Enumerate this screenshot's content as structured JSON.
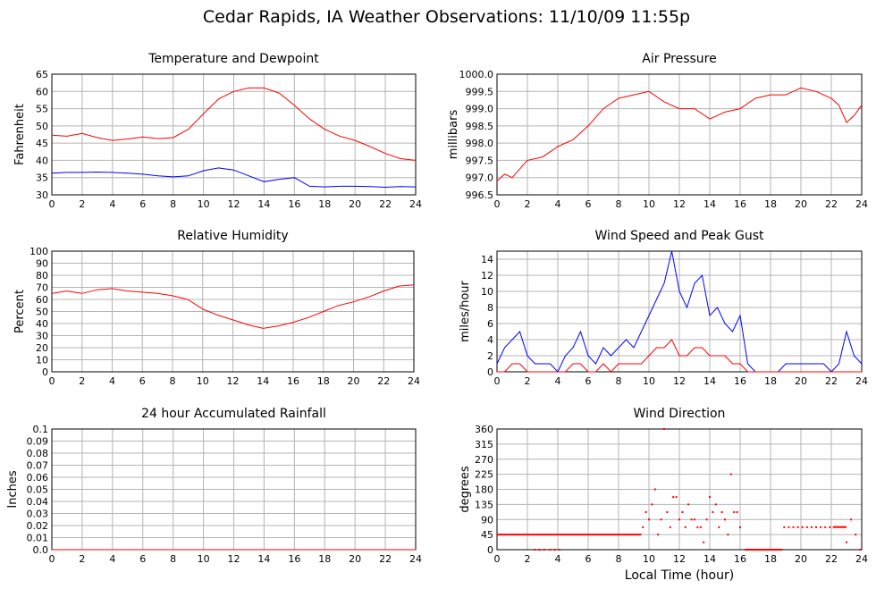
{
  "page": {
    "title": "Cedar Rapids, IA Weather Observations: 11/10/09 11:55p",
    "x_axis_label": "Local Time (hour)"
  },
  "colors": {
    "red": "#ff0000",
    "blue": "#0000ff",
    "grid": "#b4b4b4"
  },
  "chart_data": [
    {
      "id": "temp",
      "type": "line",
      "title": "Temperature and Dewpoint",
      "ylabel": "Fahrenheit",
      "xlim": [
        0,
        24
      ],
      "ylim": [
        30,
        65
      ],
      "xticks": [
        0,
        2,
        4,
        6,
        8,
        10,
        12,
        14,
        16,
        18,
        20,
        22,
        24
      ],
      "yticks": [
        30,
        35,
        40,
        45,
        50,
        55,
        60,
        65
      ],
      "ytick_labels": [
        "30",
        "35",
        "40",
        "45",
        "50",
        "55",
        "60",
        "65"
      ],
      "grid": true,
      "series": [
        {
          "key": "temperature",
          "color": "#ff0000",
          "x": [
            0,
            1,
            2,
            3,
            4,
            5,
            6,
            7,
            8,
            9,
            10,
            11,
            12,
            13,
            14,
            15,
            16,
            17,
            18,
            19,
            20,
            21,
            22,
            23,
            24
          ],
          "values": [
            47.3,
            47.0,
            47.8,
            46.6,
            45.8,
            46.2,
            46.8,
            46.3,
            46.6,
            49.0,
            53.5,
            57.8,
            60.0,
            61.0,
            61.0,
            59.5,
            56.0,
            52.0,
            49.0,
            47.0,
            45.8,
            44.0,
            42.0,
            40.5,
            40.0
          ]
        },
        {
          "key": "dewpoint",
          "color": "#0000ff",
          "x": [
            0,
            1,
            2,
            3,
            4,
            5,
            6,
            7,
            8,
            9,
            10,
            11,
            12,
            13,
            14,
            15,
            16,
            17,
            18,
            19,
            20,
            21,
            22,
            23,
            24
          ],
          "values": [
            36.3,
            36.5,
            36.5,
            36.6,
            36.5,
            36.3,
            36.0,
            35.5,
            35.2,
            35.5,
            37.0,
            37.8,
            37.2,
            35.5,
            33.8,
            34.5,
            35.0,
            32.5,
            32.3,
            32.5,
            32.5,
            32.4,
            32.2,
            32.4,
            32.3
          ]
        }
      ]
    },
    {
      "id": "pressure",
      "type": "line",
      "title": "Air Pressure",
      "ylabel": "millibars",
      "xlim": [
        0,
        24
      ],
      "ylim": [
        996.5,
        1000.0
      ],
      "xticks": [
        0,
        2,
        4,
        6,
        8,
        10,
        12,
        14,
        16,
        18,
        20,
        22,
        24
      ],
      "yticks": [
        996.5,
        997.0,
        997.5,
        998.0,
        998.5,
        999.0,
        999.5,
        1000.0
      ],
      "ytick_labels": [
        "996.5",
        "997.0",
        "997.5",
        "998.0",
        "998.5",
        "999.0",
        "999.5",
        "1000.0"
      ],
      "grid": true,
      "series": [
        {
          "key": "pressure",
          "color": "#ff0000",
          "x": [
            0,
            0.5,
            1,
            2,
            3,
            4,
            5,
            6,
            7,
            8,
            9,
            10,
            11,
            12,
            13,
            14,
            15,
            16,
            17,
            18,
            19,
            20,
            21,
            22,
            22.5,
            23,
            23.5,
            24
          ],
          "values": [
            996.9,
            997.1,
            997.0,
            997.5,
            997.6,
            997.9,
            998.1,
            998.5,
            999.0,
            999.3,
            999.4,
            999.5,
            999.2,
            999.0,
            999.0,
            998.7,
            998.9,
            999.0,
            999.3,
            999.4,
            999.4,
            999.6,
            999.5,
            999.3,
            999.1,
            998.6,
            998.8,
            999.1
          ]
        }
      ]
    },
    {
      "id": "humidity",
      "type": "line",
      "title": "Relative Humidity",
      "ylabel": "Percent",
      "xlim": [
        0,
        24
      ],
      "ylim": [
        0,
        100
      ],
      "xticks": [
        0,
        2,
        4,
        6,
        8,
        10,
        12,
        14,
        16,
        18,
        20,
        22,
        24
      ],
      "yticks": [
        0,
        10,
        20,
        30,
        40,
        50,
        60,
        70,
        80,
        90,
        100
      ],
      "ytick_labels": [
        "0",
        "10",
        "20",
        "30",
        "40",
        "50",
        "60",
        "70",
        "80",
        "90",
        "100"
      ],
      "grid": true,
      "series": [
        {
          "key": "rh",
          "color": "#ff0000",
          "x": [
            0,
            1,
            2,
            3,
            4,
            5,
            6,
            7,
            8,
            9,
            10,
            11,
            12,
            13,
            14,
            15,
            16,
            17,
            18,
            19,
            20,
            21,
            22,
            23,
            24
          ],
          "values": [
            65,
            67,
            65,
            68,
            69,
            67,
            66,
            65,
            63,
            60,
            52,
            47,
            43,
            39,
            36,
            38,
            41,
            45,
            50,
            55,
            58,
            62,
            67,
            71,
            72
          ]
        }
      ]
    },
    {
      "id": "wind",
      "type": "line",
      "title": "Wind Speed and Peak Gust",
      "ylabel": "miles/hour",
      "xlim": [
        0,
        24
      ],
      "ylim": [
        0,
        15
      ],
      "xticks": [
        0,
        2,
        4,
        6,
        8,
        10,
        12,
        14,
        16,
        18,
        20,
        22,
        24
      ],
      "yticks": [
        0,
        2,
        4,
        6,
        8,
        10,
        12,
        14
      ],
      "ytick_labels": [
        "0",
        "2",
        "4",
        "6",
        "8",
        "10",
        "12",
        "14"
      ],
      "grid": true,
      "series": [
        {
          "key": "gust",
          "color": "#0000ff",
          "x": [
            0,
            0.5,
            1,
            1.5,
            2,
            2.5,
            3,
            3.5,
            4,
            4.5,
            5,
            5.5,
            6,
            6.5,
            7,
            7.5,
            8,
            8.5,
            9,
            9.5,
            10,
            10.5,
            11,
            11.5,
            12,
            12.5,
            13,
            13.5,
            14,
            14.5,
            15,
            15.5,
            16,
            16.5,
            17,
            17.5,
            18,
            18.5,
            19,
            19.5,
            20,
            20.5,
            21,
            21.5,
            22,
            22.5,
            23,
            23.5,
            24
          ],
          "values": [
            1,
            3,
            4,
            5,
            2,
            1,
            1,
            1,
            0,
            2,
            3,
            5,
            2,
            1,
            3,
            2,
            3,
            4,
            3,
            5,
            7,
            9,
            11,
            15,
            10,
            8,
            11,
            12,
            7,
            8,
            6,
            5,
            7,
            1,
            0,
            0,
            0,
            0,
            1,
            1,
            1,
            1,
            1,
            1,
            0,
            1,
            5,
            2,
            1
          ]
        },
        {
          "key": "speed",
          "color": "#ff0000",
          "x": [
            0,
            0.5,
            1,
            1.5,
            2,
            2.5,
            3,
            3.5,
            4,
            4.5,
            5,
            5.5,
            6,
            6.5,
            7,
            7.5,
            8,
            8.5,
            9,
            9.5,
            10,
            10.5,
            11,
            11.5,
            12,
            12.5,
            13,
            13.5,
            14,
            14.5,
            15,
            15.5,
            16,
            16.5,
            17,
            17.5,
            18,
            18.5,
            19,
            19.5,
            20,
            20.5,
            21,
            21.5,
            22,
            22.5,
            23,
            23.5,
            24
          ],
          "values": [
            0,
            0,
            1,
            1,
            0,
            0,
            0,
            0,
            0,
            0,
            1,
            1,
            0,
            0,
            1,
            0,
            1,
            1,
            1,
            1,
            2,
            3,
            3,
            4,
            2,
            2,
            3,
            3,
            2,
            2,
            2,
            1,
            1,
            0,
            0,
            0,
            0,
            0,
            0,
            0,
            0,
            0,
            0,
            0,
            0,
            0,
            0,
            0,
            0
          ]
        }
      ]
    },
    {
      "id": "rain",
      "type": "line",
      "title": "24 hour Accumulated Rainfall",
      "ylabel": "Inches",
      "xlim": [
        0,
        24
      ],
      "ylim": [
        0,
        0.1
      ],
      "xticks": [
        0,
        2,
        4,
        6,
        8,
        10,
        12,
        14,
        16,
        18,
        20,
        22,
        24
      ],
      "yticks": [
        0,
        0.01,
        0.02,
        0.03,
        0.04,
        0.05,
        0.06,
        0.07,
        0.08,
        0.09,
        0.1
      ],
      "ytick_labels": [
        "0.0",
        "0.01",
        "0.02",
        "0.03",
        "0.04",
        "0.05",
        "0.06",
        "0.07",
        "0.08",
        "0.09",
        "0.1"
      ],
      "grid": true,
      "series": [
        {
          "key": "rain",
          "color": "#ff0000",
          "x": [
            0,
            24
          ],
          "values": [
            0,
            0
          ]
        }
      ]
    },
    {
      "id": "direction",
      "type": "scatter",
      "title": "Wind Direction",
      "ylabel": "degrees",
      "xlim": [
        0,
        24
      ],
      "ylim": [
        0,
        360
      ],
      "xticks": [
        0,
        2,
        4,
        6,
        8,
        10,
        12,
        14,
        16,
        18,
        20,
        22,
        24
      ],
      "yticks": [
        0,
        45,
        90,
        135,
        180,
        225,
        270,
        315,
        360
      ],
      "ytick_labels": [
        "0",
        "45",
        "90",
        "135",
        "180",
        "225",
        "270",
        "315",
        "360"
      ],
      "grid": true,
      "segments": [
        {
          "x0": 0,
          "x1": 9.5,
          "y": 45
        },
        {
          "x0": 16.3,
          "x1": 18.8,
          "y": 0
        },
        {
          "x0": 22.1,
          "x1": 23.0,
          "y": 67.5
        }
      ],
      "series": [
        {
          "key": "direction",
          "color": "#ff0000",
          "x": [
            2.5,
            2.8,
            3.1,
            3.5,
            3.8,
            4.1,
            9.6,
            9.8,
            10.0,
            10.2,
            10.4,
            10.6,
            10.8,
            11.0,
            11.2,
            11.4,
            11.6,
            11.8,
            12.0,
            12.2,
            12.4,
            12.6,
            12.8,
            13.0,
            13.2,
            13.4,
            13.6,
            13.8,
            14.0,
            14.2,
            14.4,
            14.6,
            14.8,
            15.0,
            15.2,
            15.4,
            15.6,
            15.8,
            16.0,
            18.9,
            19.2,
            19.5,
            19.8,
            20.1,
            20.4,
            20.7,
            21.0,
            21.3,
            21.6,
            21.9,
            23.0,
            23.3,
            23.6,
            23.9
          ],
          "values": [
            0,
            0,
            0,
            0,
            0,
            0,
            67,
            112,
            90,
            135,
            180,
            45,
            90,
            360,
            112,
            67,
            157,
            157,
            90,
            112,
            67,
            135,
            90,
            90,
            67,
            67,
            22,
            90,
            157,
            112,
            135,
            67,
            112,
            90,
            45,
            225,
            112,
            112,
            67,
            67,
            67,
            67,
            67,
            67,
            67,
            67,
            67,
            67,
            67,
            67,
            22,
            90,
            45,
            0
          ]
        }
      ]
    }
  ]
}
